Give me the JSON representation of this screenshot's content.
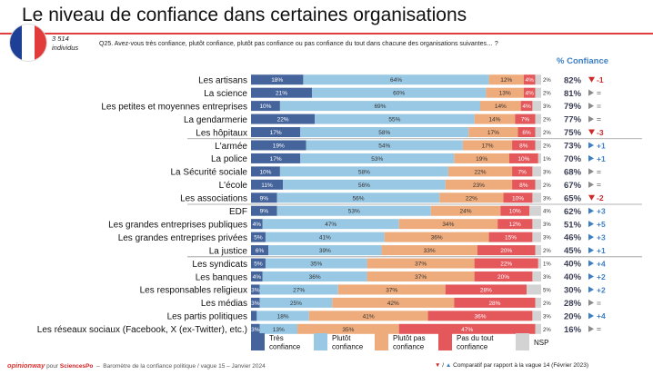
{
  "header": {
    "title": "Le niveau de confiance dans certaines organisations",
    "sample_count": "3 514",
    "sample_unit": "individus",
    "question": "Q25. Avez-vous très confiance, plutôt confiance, plutôt pas confiance ou pas confiance du tout dans chacune des organisations suivantes… ?",
    "confidence_header": "% Confiance"
  },
  "colors": {
    "tres": "#44649b",
    "plutot": "#99c8e4",
    "plutot_pas": "#eeab7b",
    "pas_du_tout": "#e4575b",
    "nsp": "#d3d3d3",
    "up": "#3d7fc4",
    "down": "#cc2b2b",
    "neutral": "#8a8a8a",
    "flag_blue": "#1d3f96",
    "flag_red": "#e23b3b"
  },
  "chart_data": {
    "type": "bar",
    "orientation": "horizontal",
    "stacked": true,
    "categories": [
      "Les artisans",
      "La science",
      "Les petites et moyennes entreprises",
      "La gendarmerie",
      "Les hôpitaux",
      "L'armée",
      "La police",
      "La Sécurité sociale",
      "L'école",
      "Les associations",
      "EDF",
      "Les grandes entreprises publiques",
      "Les grandes entreprises privées",
      "La justice",
      "Les syndicats",
      "Les banques",
      "Les responsables religieux",
      "Les médias",
      "Les partis politiques",
      "Les réseaux sociaux (Facebook, X (ex-Twitter), etc.)"
    ],
    "series": [
      {
        "name": "Très confiance",
        "key": "tres",
        "values": [
          18,
          21,
          10,
          22,
          17,
          19,
          17,
          10,
          11,
          9,
          9,
          4,
          5,
          6,
          5,
          4,
          3,
          3,
          2,
          3
        ]
      },
      {
        "name": "Plutôt confiance",
        "key": "plutot",
        "values": [
          64,
          60,
          69,
          55,
          58,
          54,
          53,
          58,
          56,
          56,
          53,
          47,
          41,
          39,
          35,
          36,
          27,
          25,
          18,
          13
        ]
      },
      {
        "name": "Plutôt pas confiance",
        "key": "plutot_pas",
        "values": [
          12,
          13,
          14,
          14,
          17,
          17,
          19,
          22,
          23,
          22,
          24,
          34,
          36,
          33,
          37,
          37,
          37,
          42,
          41,
          35
        ]
      },
      {
        "name": "Pas du tout confiance",
        "key": "pas_du_tout",
        "values": [
          4,
          4,
          4,
          7,
          6,
          8,
          10,
          7,
          8,
          10,
          10,
          12,
          15,
          20,
          22,
          20,
          28,
          28,
          36,
          47
        ]
      },
      {
        "name": "NSP",
        "key": "nsp",
        "values": [
          2,
          2,
          3,
          2,
          2,
          2,
          1,
          3,
          2,
          3,
          4,
          3,
          3,
          2,
          1,
          3,
          5,
          2,
          3,
          2
        ]
      }
    ],
    "confidence": [
      "82%",
      "81%",
      "79%",
      "77%",
      "75%",
      "73%",
      "70%",
      "68%",
      "67%",
      "65%",
      "62%",
      "51%",
      "46%",
      "45%",
      "40%",
      "40%",
      "30%",
      "28%",
      "20%",
      "16%"
    ],
    "evolution": [
      {
        "dir": "down",
        "value": "-1"
      },
      {
        "dir": "neutral",
        "value": "="
      },
      {
        "dir": "neutral",
        "value": "="
      },
      {
        "dir": "neutral",
        "value": "="
      },
      {
        "dir": "down",
        "value": "-3"
      },
      {
        "dir": "up",
        "value": "+1"
      },
      {
        "dir": "up",
        "value": "+1"
      },
      {
        "dir": "neutral",
        "value": "="
      },
      {
        "dir": "neutral",
        "value": "="
      },
      {
        "dir": "down",
        "value": "-2"
      },
      {
        "dir": "up",
        "value": "+3"
      },
      {
        "dir": "up",
        "value": "+5"
      },
      {
        "dir": "up",
        "value": "+3"
      },
      {
        "dir": "up",
        "value": "+1"
      },
      {
        "dir": "up",
        "value": "+4"
      },
      {
        "dir": "up",
        "value": "+2"
      },
      {
        "dir": "up",
        "value": "+2"
      },
      {
        "dir": "neutral",
        "value": "="
      },
      {
        "dir": "up",
        "value": "+4"
      },
      {
        "dir": "neutral",
        "value": "="
      }
    ],
    "groups_end_after": [
      4,
      9,
      13
    ],
    "legend": [
      {
        "key": "tres",
        "label": [
          "Très",
          "confiance"
        ]
      },
      {
        "key": "plutot",
        "label": [
          "Plutôt",
          "confiance"
        ]
      },
      {
        "key": "plutot_pas",
        "label": [
          "Plutôt pas",
          "confiance"
        ]
      },
      {
        "key": "pas_du_tout",
        "label": [
          "Pas du tout",
          "confiance"
        ]
      },
      {
        "key": "nsp",
        "label": [
          "NSP"
        ]
      }
    ],
    "xlim": [
      0,
      100
    ],
    "legend_position": "bottom"
  },
  "footer": {
    "brand": "opinionway",
    "pour": "pour",
    "partner": "SciencesPo",
    "source": "Baromètre de la confiance politique / vague 15 – Janvier 2024",
    "comparison_down": "▼",
    "comparison_sep": "/",
    "comparison_up": "▲",
    "comparison": "Comparatif par rapport à la vague 14 (Février 2023)"
  }
}
